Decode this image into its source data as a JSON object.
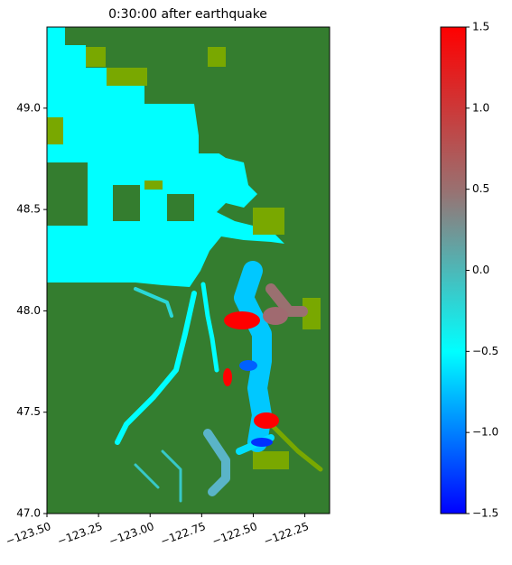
{
  "chart_data": {
    "type": "map",
    "title": "0:30:00 after earthquake",
    "xlim": [
      -123.5,
      -122.13
    ],
    "ylim": [
      47.0,
      49.4
    ],
    "xticks": [
      {
        "value": -123.5,
        "label": "−123.50"
      },
      {
        "value": -123.25,
        "label": "−123.25"
      },
      {
        "value": -123.0,
        "label": "−123.00"
      },
      {
        "value": -122.75,
        "label": "−122.75"
      },
      {
        "value": -122.5,
        "label": "−122.50"
      },
      {
        "value": -122.25,
        "label": "−122.25"
      }
    ],
    "yticks": [
      {
        "value": 47.0,
        "label": "47.0"
      },
      47.5,
      {
        "value": 48.0,
        "label": "48.0"
      },
      48.5,
      {
        "value": 49.0,
        "label": "49.0"
      }
    ],
    "colorbar": {
      "clim": [
        -1.5,
        1.5
      ],
      "colormap": [
        "#0000ff",
        "#00ffff",
        "#9a7070",
        "#ff0000"
      ],
      "ticks": [
        {
          "value": -1.5,
          "label": "−1.5"
        },
        {
          "value": -1.0,
          "label": "−1.0"
        },
        {
          "value": -0.5,
          "label": "−0.5"
        },
        {
          "value": 0.0,
          "label": "0.0"
        },
        0.5,
        {
          "value": 1.0,
          "label": "1.0"
        },
        1.5
      ]
    }
  }
}
